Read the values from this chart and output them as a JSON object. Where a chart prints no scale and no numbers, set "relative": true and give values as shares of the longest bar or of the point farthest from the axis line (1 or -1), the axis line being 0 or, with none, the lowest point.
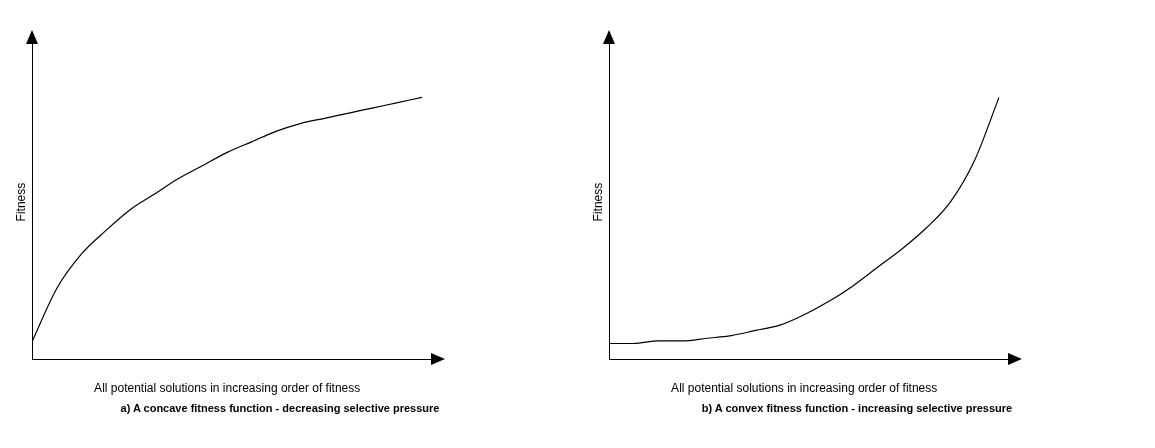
{
  "chart_data": [
    {
      "type": "line",
      "relative": true,
      "ylabel": "Fitness",
      "xlabel": "All potential solutions in increasing order of fitness",
      "annotations": [
        "a) A concave fitness function - decreasing selective pressure"
      ],
      "categories": [
        null,
        null,
        null,
        null,
        null,
        null,
        null,
        null,
        null,
        null,
        null,
        null,
        null,
        null,
        null,
        null,
        null
      ],
      "series": [
        {
          "color": "#000000",
          "values": [
            0.07,
            0.27,
            0.4,
            0.49,
            0.57,
            0.63,
            0.69,
            0.74,
            0.79,
            0.83,
            0.87,
            0.9,
            0.92,
            0.94,
            0.96,
            0.98,
            1
          ]
        }
      ],
      "marker": "none",
      "legend": false,
      "grid": false
    },
    {
      "type": "line",
      "relative": true,
      "ylabel": "Fitness",
      "xlabel": "All potential solutions in increasing order of fitness",
      "annotations": [
        "b) A convex fitness function - increasing selective pressure"
      ],
      "categories": [
        null,
        null,
        null,
        null,
        null,
        null,
        null,
        null,
        null,
        null,
        null,
        null,
        null,
        null,
        null,
        null,
        null
      ],
      "series": [
        {
          "color": "#000000",
          "values": [
            0.06,
            0.06,
            0.07,
            0.07,
            0.08,
            0.09,
            0.11,
            0.13,
            0.17,
            0.22,
            0.28,
            0.35,
            0.42,
            0.5,
            0.6,
            0.76,
            1
          ]
        }
      ],
      "marker": "none",
      "legend": false,
      "grid": false
    }
  ]
}
